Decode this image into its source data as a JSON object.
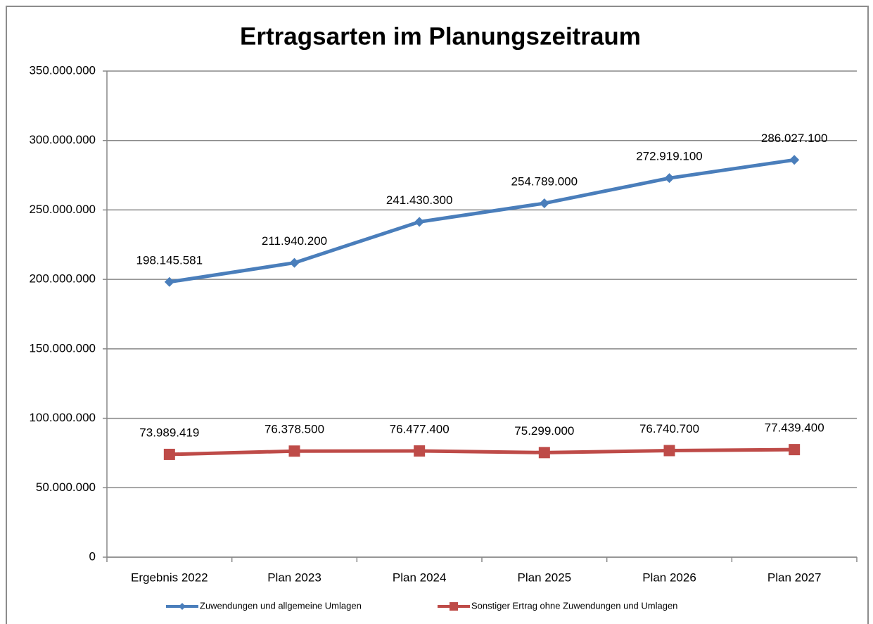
{
  "chart_data": {
    "type": "line",
    "title": "Ertragsarten im Planungszeitraum",
    "categories": [
      "Ergebnis 2022",
      "Plan 2023",
      "Plan 2024",
      "Plan 2025",
      "Plan 2026",
      "Plan 2027"
    ],
    "series": [
      {
        "name": "Zuwendungen und allgemeine Umlagen",
        "color": "#4a7ebb",
        "marker": "diamond",
        "values": [
          198145581,
          211940200,
          241430300,
          254789000,
          272919100,
          286027100
        ],
        "value_labels": [
          "198.145.581",
          "211.940.200",
          "241.430.300",
          "254.789.000",
          "272.919.100",
          "286.027.100"
        ]
      },
      {
        "name": "Sonstiger Ertrag ohne Zuwendungen und Umlagen",
        "color": "#be4b48",
        "marker": "square",
        "values": [
          73989419,
          76378500,
          76477400,
          75299000,
          76740700,
          77439400
        ],
        "value_labels": [
          "73.989.419",
          "76.378.500",
          "76.477.400",
          "75.299.000",
          "76.740.700",
          "77.439.400"
        ]
      }
    ],
    "ylim": [
      0,
      350000000
    ],
    "yticks": [
      0,
      {
        "value": 50000000,
        "label": "50.000.000"
      },
      {
        "value": 100000000,
        "label": "100.000.000"
      },
      {
        "value": 150000000,
        "label": "150.000.000"
      },
      {
        "value": 200000000,
        "label": "200.000.000"
      },
      {
        "value": 250000000,
        "label": "250.000.000"
      },
      {
        "value": 300000000,
        "label": "300.000.000"
      },
      {
        "value": 350000000,
        "label": "350.000.000"
      }
    ],
    "grid": true,
    "legend": "bottom"
  }
}
